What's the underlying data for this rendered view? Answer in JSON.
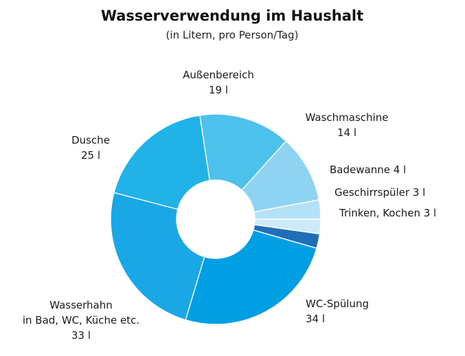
{
  "chart_data": {
    "type": "pie",
    "title": "Wasserverwendung im Haushalt",
    "subtitle": "(in Litern, pro Person/Tag)",
    "unit": "l",
    "legend": "none",
    "slices": [
      {
        "label_lines": [
          "Trinken, Kochen 3 l"
        ],
        "value": 3,
        "color": "#1f6fb8"
      },
      {
        "label_lines": [
          "WC-Spülung",
          "34 l"
        ],
        "value": 34,
        "color": "#009fe3"
      },
      {
        "label_lines": [
          "Wasserhahn",
          "in Bad, WC, Küche etc.",
          "33 l"
        ],
        "value": 33,
        "color": "#1aa7e5"
      },
      {
        "label_lines": [
          "Dusche",
          "25 l"
        ],
        "value": 25,
        "color": "#21b3e8"
      },
      {
        "label_lines": [
          "Außenbereich",
          "19 l"
        ],
        "value": 19,
        "color": "#4cc1ec"
      },
      {
        "label_lines": [
          "Waschmaschine",
          "14 l"
        ],
        "value": 14,
        "color": "#8fd3f3"
      },
      {
        "label_lines": [
          "Badewanne 4 l"
        ],
        "value": 4,
        "color": "#b3e1f7"
      },
      {
        "label_lines": [
          "Geschirrspüler 3 l"
        ],
        "value": 3,
        "color": "#cdeafa"
      }
    ]
  }
}
